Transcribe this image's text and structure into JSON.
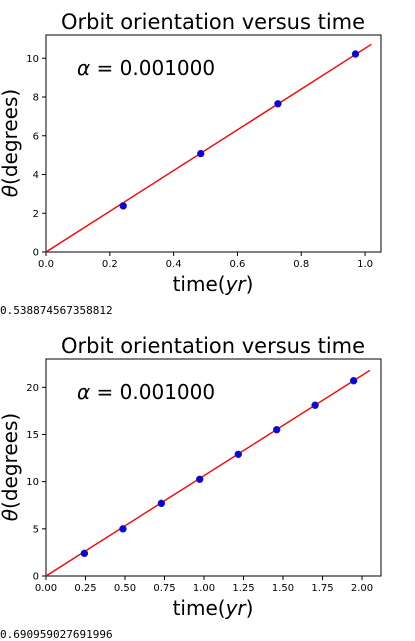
{
  "colors": {
    "line": "#ff0000",
    "marker": "#0000ff",
    "marker_edge": "#2a1f7a",
    "axis": "#000000",
    "background": "#ffffff"
  },
  "chart_data": [
    {
      "type": "scatter",
      "title": "Orbit orientation versus time",
      "xlabel_main": "time(",
      "xlabel_unit": "yr",
      "xlabel_end": ")",
      "ylabel_symbol": "θ",
      "ylabel_rest": "(degrees)",
      "annotation_symbol": "α",
      "annotation_value": " = 0.001000",
      "xlim": [
        0.0,
        1.05
      ],
      "ylim": [
        0,
        11.2
      ],
      "xticks": [
        0.0,
        0.2,
        0.4,
        0.6,
        0.8,
        1.0
      ],
      "xtick_labels": [
        "0.0",
        "0.2",
        "0.4",
        "0.6",
        "0.8",
        "1.0"
      ],
      "yticks": [
        0,
        2,
        4,
        6,
        8,
        10
      ],
      "ytick_labels": [
        "0",
        "2",
        "4",
        "6",
        "8",
        "10"
      ],
      "grid": false,
      "points": {
        "x": [
          0.242,
          0.485,
          0.727,
          0.97
        ],
        "y": [
          2.38,
          5.08,
          7.65,
          10.22
        ]
      },
      "fit_line": {
        "x": [
          0.0,
          1.02
        ],
        "y": [
          0.0,
          10.72
        ]
      },
      "printout": "0.538874567358812"
    },
    {
      "type": "scatter",
      "title": "Orbit orientation versus time",
      "xlabel_main": "time(",
      "xlabel_unit": "yr",
      "xlabel_end": ")",
      "ylabel_symbol": "θ",
      "ylabel_rest": "(degrees)",
      "annotation_symbol": "α",
      "annotation_value": " = 0.001000",
      "xlim": [
        0.0,
        2.12
      ],
      "ylim": [
        0,
        23.0
      ],
      "xticks": [
        0.0,
        0.25,
        0.5,
        0.75,
        1.0,
        1.25,
        1.5,
        1.75,
        2.0
      ],
      "xtick_labels": [
        "0.00",
        "0.25",
        "0.50",
        "0.75",
        "1.00",
        "1.25",
        "1.50",
        "1.75",
        "2.00"
      ],
      "yticks": [
        0,
        5,
        10,
        15,
        20
      ],
      "ytick_labels": [
        "0",
        "5",
        "10",
        "15",
        "20"
      ],
      "grid": false,
      "points": {
        "x": [
          0.243,
          0.487,
          0.73,
          0.973,
          1.217,
          1.46,
          1.703,
          1.947
        ],
        "y": [
          2.4,
          5.0,
          7.7,
          10.25,
          12.9,
          15.5,
          18.1,
          20.7
        ]
      },
      "fit_line": {
        "x": [
          0.0,
          2.05
        ],
        "y": [
          0.0,
          21.8
        ]
      },
      "printout": "0.690959027691996"
    }
  ]
}
